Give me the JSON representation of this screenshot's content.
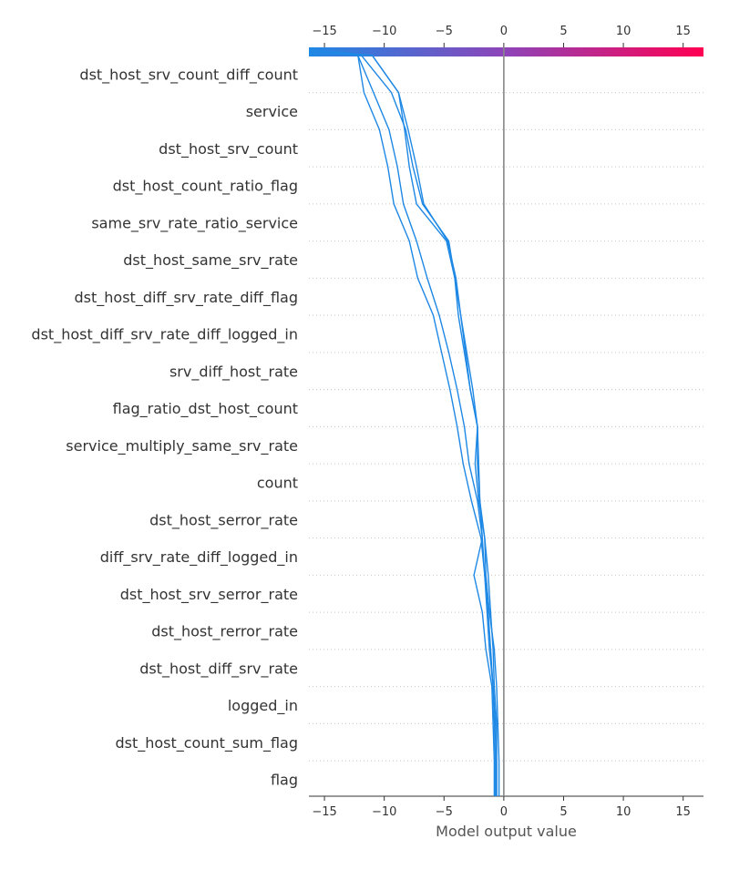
{
  "chart_data": {
    "type": "line",
    "title": "",
    "xlabel": "Model output value",
    "ylabel": "",
    "xlim": [
      -16.3,
      16.7
    ],
    "x_ticks": [
      -15,
      -10,
      -5,
      0,
      5,
      10,
      15
    ],
    "x_tick_labels": [
      "−15",
      "−10",
      "−5",
      "0",
      "5",
      "10",
      "15"
    ],
    "base_value": 0,
    "colorbar": {
      "from": "#1e88e5",
      "to": "#ff0052",
      "range": [
        -16.3,
        16.7
      ]
    },
    "line_color": "#1e88e5",
    "grid": "dotted horizontal",
    "features": [
      "dst_host_srv_count_diff_count",
      "service",
      "dst_host_srv_count",
      "dst_host_count_ratio_flag",
      "same_srv_rate_ratio_service",
      "dst_host_same_srv_rate",
      "dst_host_diff_srv_rate_diff_flag",
      "dst_host_diff_srv_rate_diff_logged_in",
      "srv_diff_host_rate",
      "flag_ratio_dst_host_count",
      "service_multiply_same_srv_rate",
      "count",
      "dst_host_serror_rate",
      "diff_srv_rate_diff_logged_in",
      "dst_host_srv_serror_rate",
      "dst_host_rerror_rate",
      "dst_host_diff_srv_rate",
      "logged_in",
      "dst_host_count_sum_flag",
      "flag"
    ],
    "series": [
      {
        "values": [
          -0.8,
          -0.8,
          -0.9,
          -1.0,
          -1.5,
          -1.8,
          -2.5,
          -1.8,
          -2.0,
          -2.1,
          -2.2,
          -2.8,
          -3.3,
          -3.8,
          -4.1,
          -4.8,
          -7.3,
          -7.9,
          -8.3,
          -8.8,
          -11.0,
          -14.5
        ]
      },
      {
        "values": [
          -0.4,
          -0.4,
          -0.5,
          -0.6,
          -0.8,
          -1.2,
          -1.5,
          -1.6,
          -2.1,
          -2.4,
          -2.2,
          -2.8,
          -3.2,
          -3.6,
          -4.0,
          -4.7,
          -6.7,
          -7.3,
          -8.0,
          -8.8,
          -11.0,
          -14.5
        ]
      },
      {
        "values": [
          -0.6,
          -0.6,
          -0.6,
          -0.8,
          -0.9,
          -1.1,
          -1.3,
          -1.6,
          -2.0,
          -2.2,
          -2.2,
          -2.6,
          -3.1,
          -3.6,
          -4.1,
          -4.6,
          -6.8,
          -7.6,
          -8.2,
          -9.4,
          -11.9,
          -15.5
        ]
      },
      {
        "values": [
          -0.6,
          -0.6,
          -0.7,
          -0.9,
          -1.1,
          -1.3,
          -1.6,
          -1.8,
          -2.2,
          -2.9,
          -3.3,
          -3.9,
          -4.6,
          -5.4,
          -6.4,
          -7.3,
          -8.4,
          -8.9,
          -9.6,
          -10.9,
          -12.2,
          -15.5
        ]
      },
      {
        "values": [
          -0.7,
          -0.7,
          -0.8,
          -0.9,
          -1.2,
          -1.4,
          -1.6,
          -1.9,
          -2.7,
          -3.4,
          -3.9,
          -4.5,
          -5.2,
          -5.9,
          -7.2,
          -7.9,
          -9.2,
          -9.7,
          -10.4,
          -11.7,
          -12.2,
          -15.0
        ]
      }
    ]
  }
}
